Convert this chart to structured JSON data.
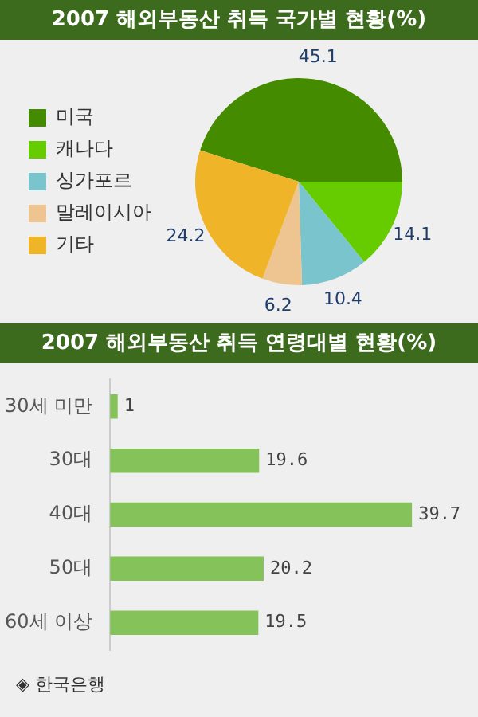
{
  "chart_data": [
    {
      "type": "pie",
      "title": "2007 해외부동산 취득 국가별 현황(%)",
      "categories": [
        "미국",
        "캐나다",
        "싱가포르",
        "말레이시아",
        "기타"
      ],
      "values": [
        45.1,
        14.1,
        10.4,
        6.2,
        24.2
      ],
      "colors": [
        "#458b00",
        "#66cc00",
        "#7ac5cd",
        "#eec591",
        "#f0b428"
      ],
      "data_labels": true,
      "legend": "left"
    },
    {
      "type": "bar",
      "orientation": "horizontal",
      "title": "2007 해외부동산 취득 연령대별 현황(%)",
      "categories": [
        "30세 미만",
        "30대",
        "40대",
        "50대",
        "60세 이상"
      ],
      "values": [
        1,
        19.6,
        39.7,
        20.2,
        19.5
      ],
      "color": "#85c25a",
      "data_labels": true,
      "tick_labels": "y",
      "annotations": [
        "◈ 한국은행"
      ]
    }
  ]
}
